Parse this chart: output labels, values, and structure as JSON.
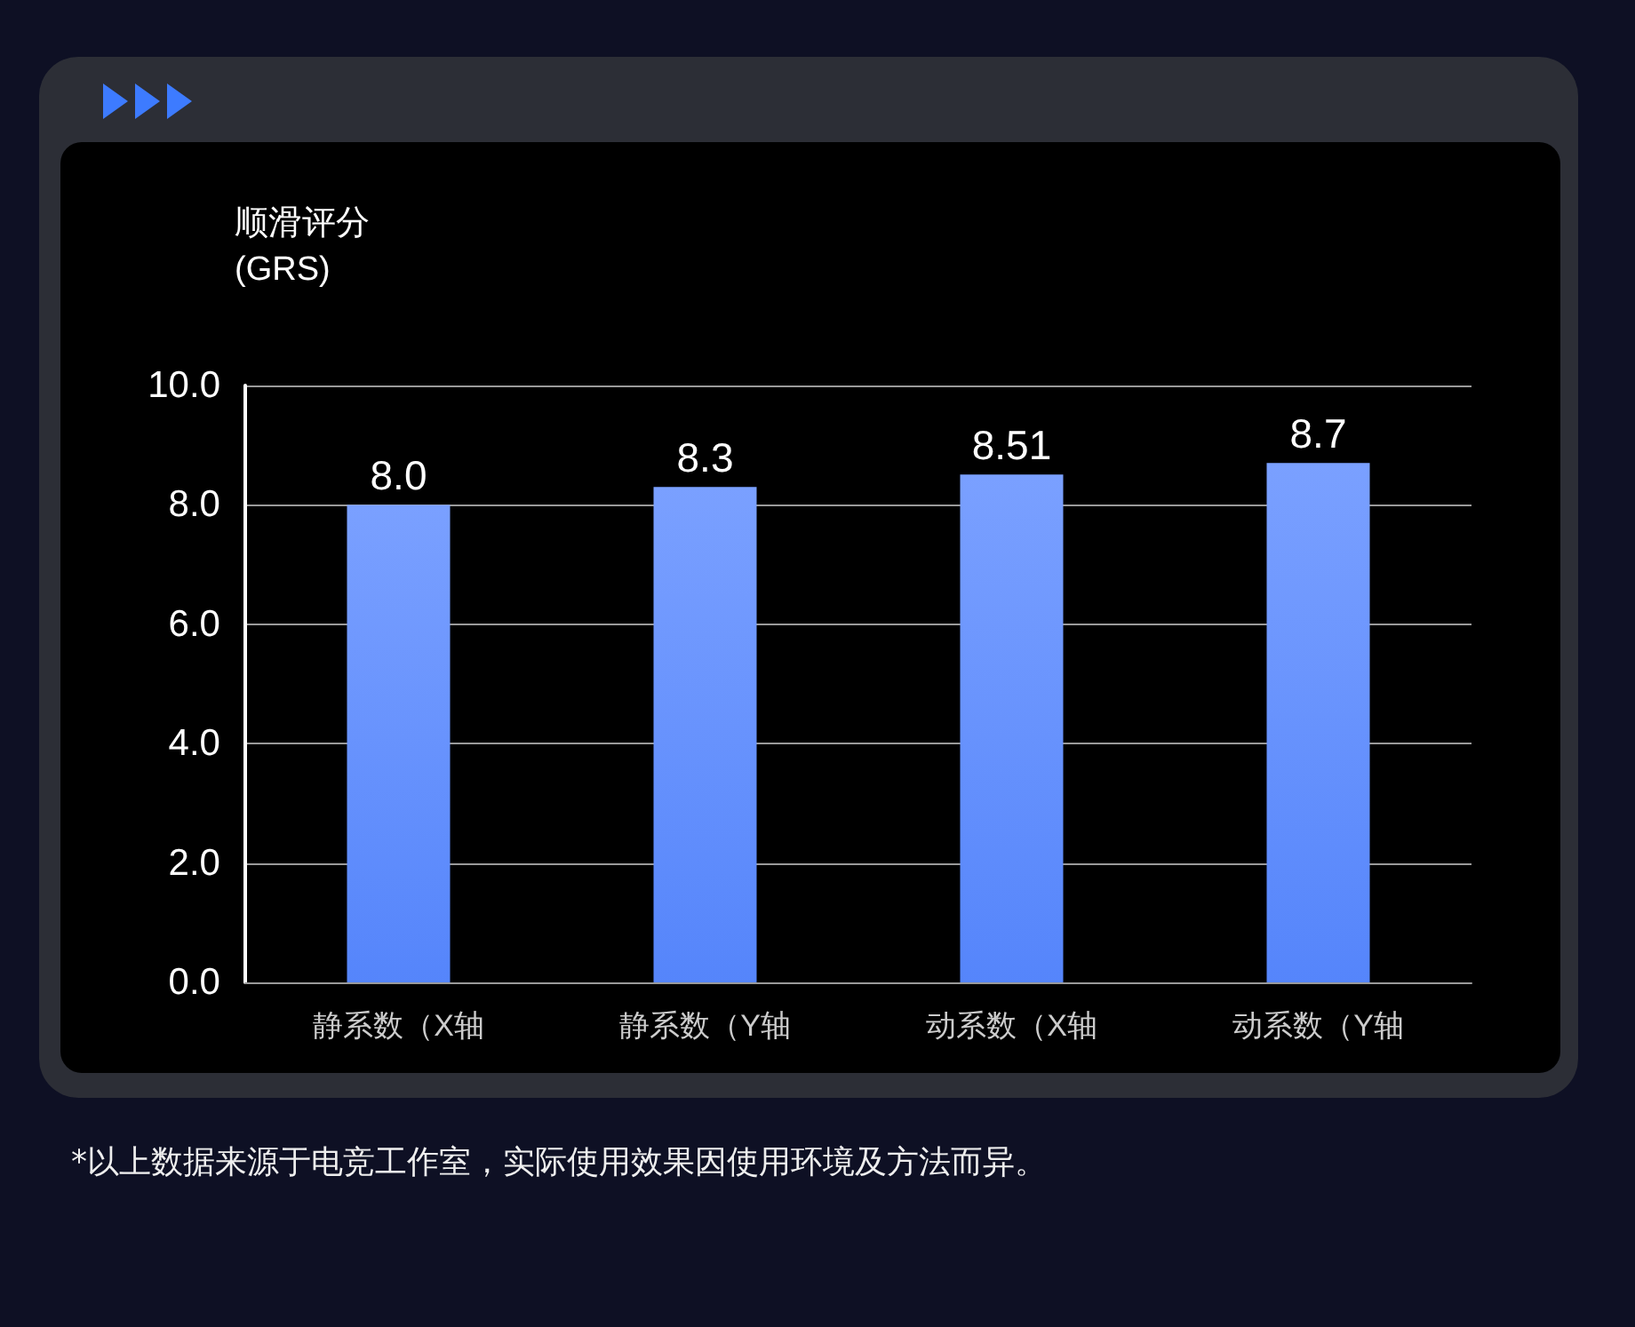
{
  "chart_data": {
    "type": "bar",
    "ylabel": "顺滑评分\n(GRS)",
    "categories": [
      "静系数（X轴",
      "静系数（Y轴",
      "动系数（X轴",
      "动系数（Y轴"
    ],
    "values": [
      8.0,
      8.3,
      8.51,
      8.7
    ],
    "color": "#5585fb",
    "ylim": [
      0,
      10
    ],
    "yticks": [
      {
        "value": 0,
        "label": "0.0"
      },
      {
        "value": 2,
        "label": "2.0"
      },
      {
        "value": 4,
        "label": "4.0"
      },
      {
        "value": 6,
        "label": "6.0"
      },
      {
        "value": 8,
        "label": "8.0"
      },
      {
        "value": 10,
        "label": "10.0"
      }
    ],
    "value_labels": [
      "8.0",
      "8.3",
      "8.51",
      "8.7"
    ],
    "grid": "y",
    "annotations": [
      "*以上数据来源于电竞工作室，实际使用效果因使用环境及方法而异。"
    ]
  }
}
